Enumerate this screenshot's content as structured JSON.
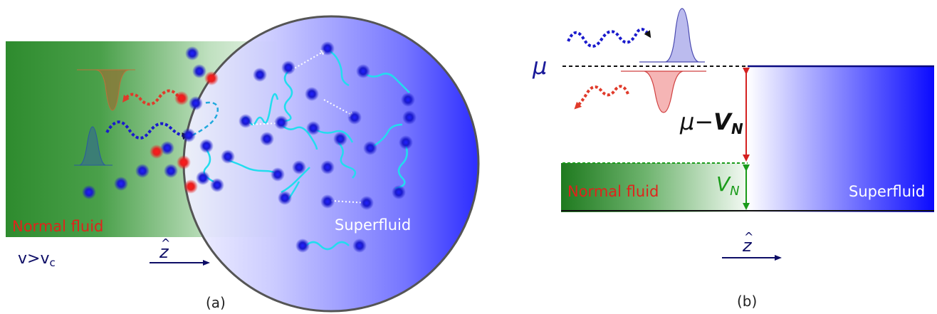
{
  "panel_a": {
    "normal_fluid_label": "Normal fluid",
    "superfluid_label": "Superfluid",
    "velocity_condition": "v>v",
    "velocity_subscript": "c",
    "axis_label": "z",
    "axis_hat": "^",
    "caption": "(a)"
  },
  "panel_b": {
    "mu_label": "μ",
    "mu_minus": "μ−",
    "vn_bold": "V",
    "vn_sub": "N",
    "vn_label": "V",
    "vn_label_sub": "N",
    "normal_fluid_label": "Normal fluid",
    "superfluid_label": "Superfluid",
    "axis_label": "z",
    "axis_hat": "^",
    "caption": "(b)"
  },
  "colors": {
    "normal_green": "#2e8b2e",
    "superfluid_blue": "#1a1aff",
    "particle_blue": "#1c1ccc",
    "particle_red": "#e62020",
    "phonon_cyan": "#22ddee",
    "incoming_wave": "#1a1acc",
    "reflected_wave": "#e03a2a",
    "label_red": "#e0231b",
    "label_green": "#1a9b1a",
    "axis_navy": "#0d0d66"
  },
  "icons": [
    "incoming-wave-arrow-icon",
    "reflected-wave-arrow-icon",
    "gaussian-packet-icon"
  ]
}
